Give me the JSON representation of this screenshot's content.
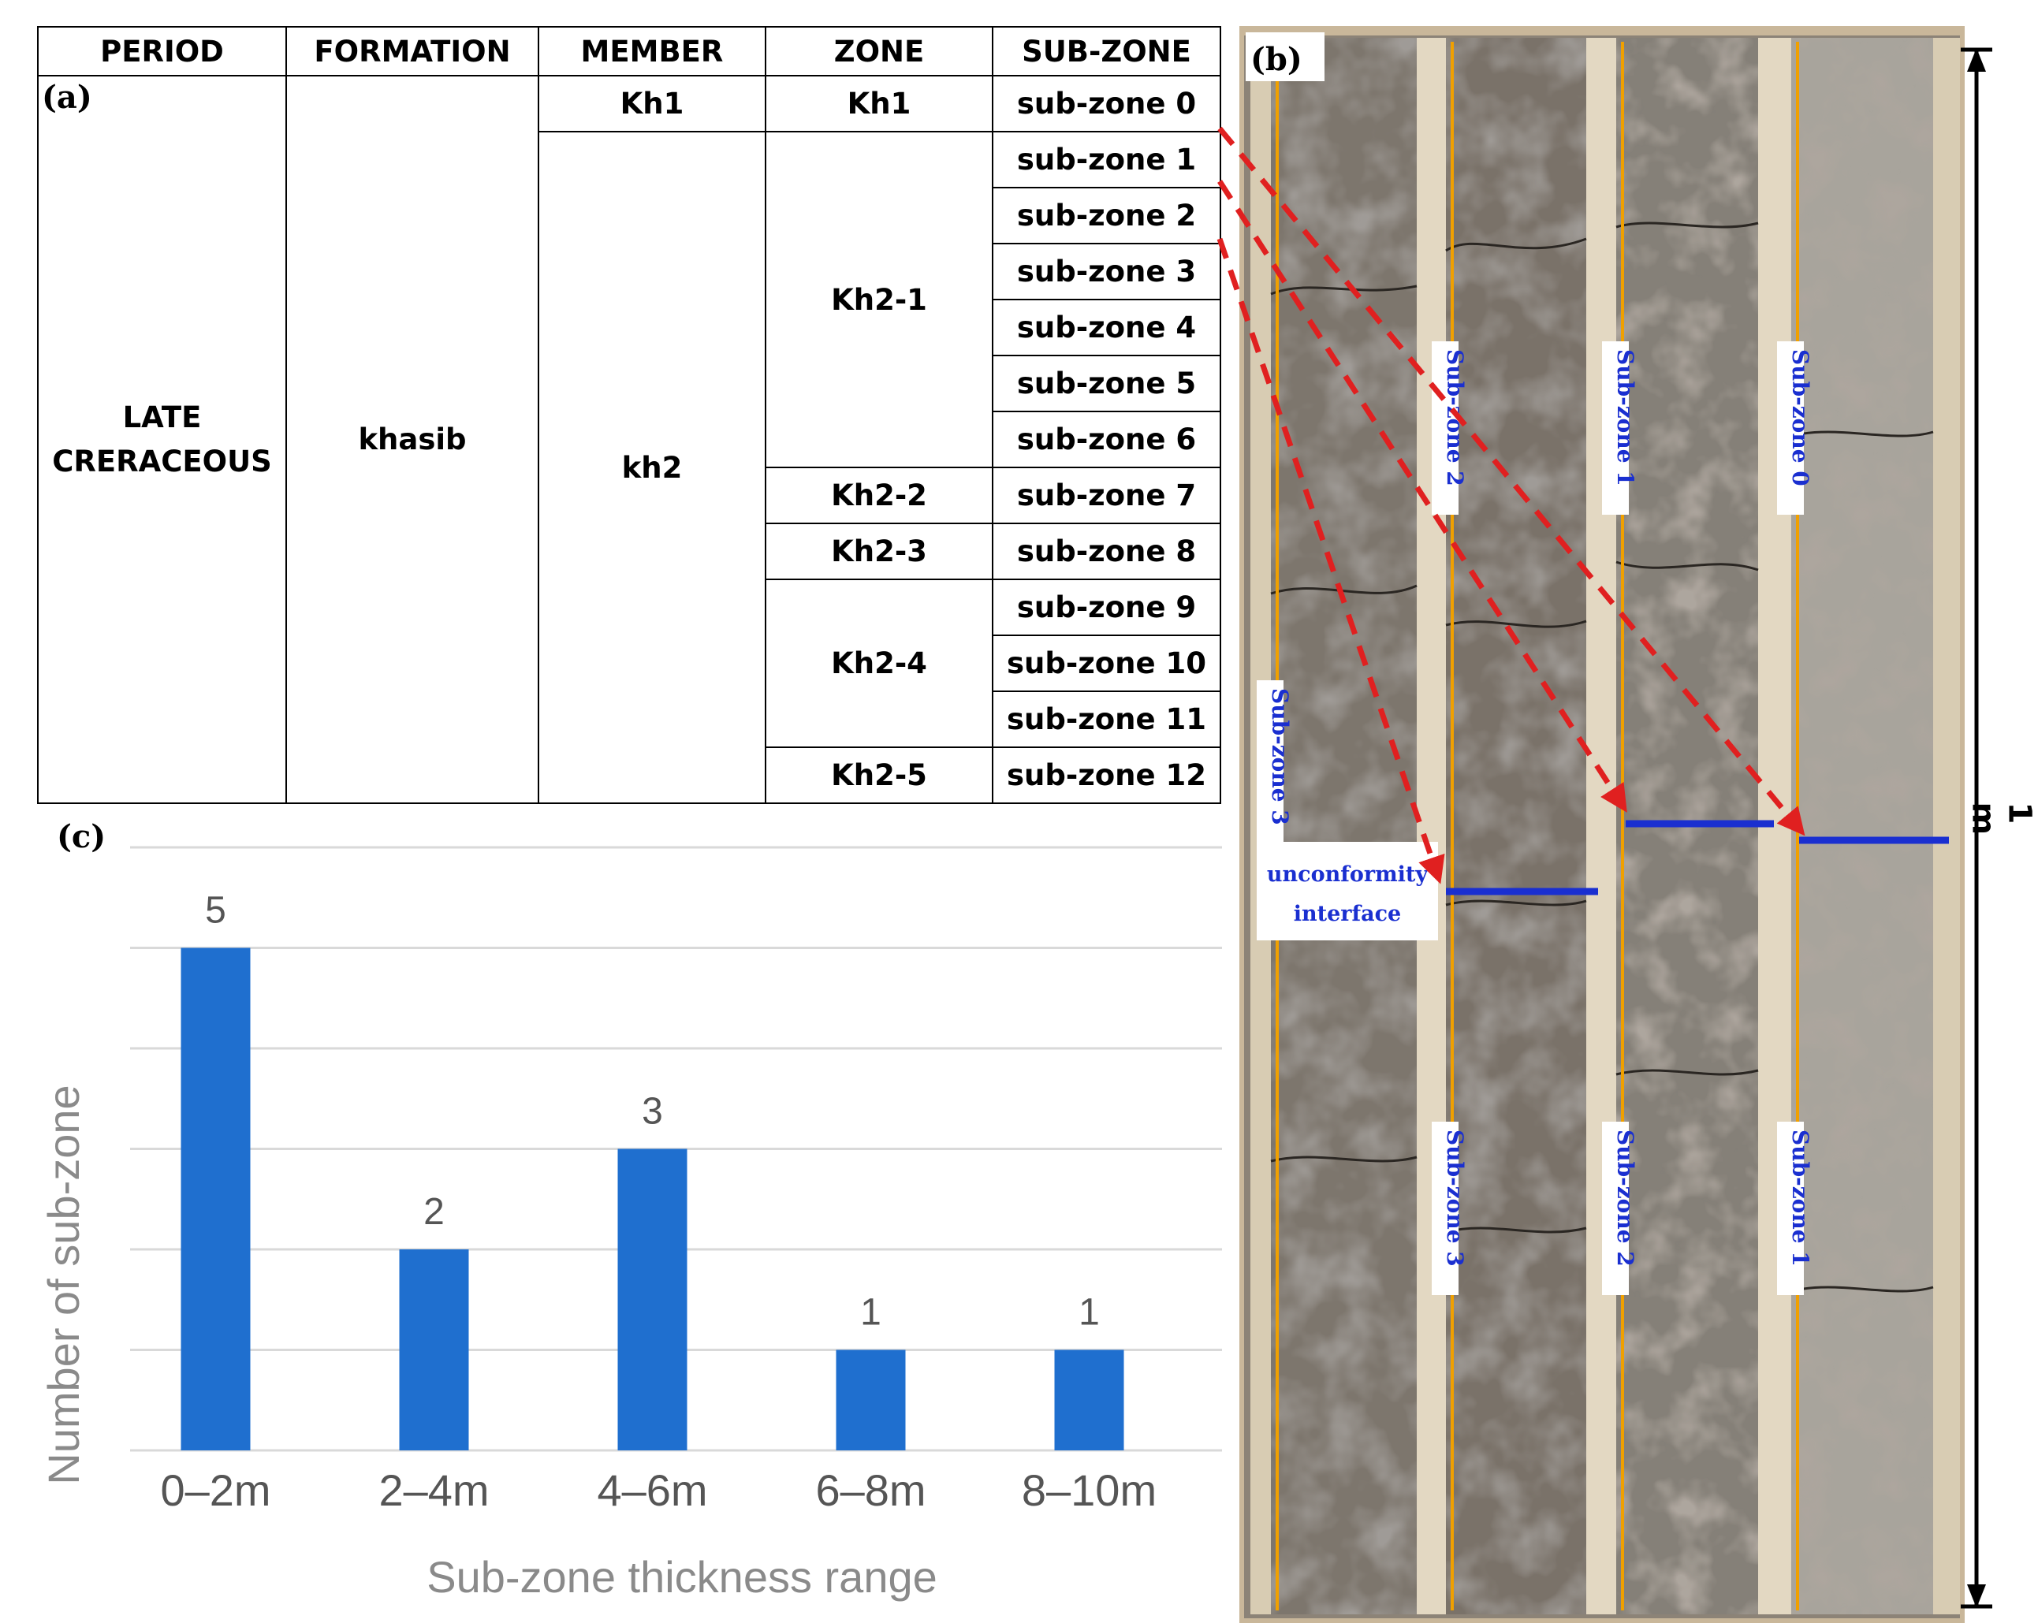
{
  "panel_a": {
    "label": "(a)",
    "headers": {
      "period": "PERIOD",
      "formation": "FORMATION",
      "member": "MEMBER",
      "zone": "ZONE",
      "subzone": "SUB-ZONE"
    },
    "period": {
      "line1": "LATE",
      "line2": "CRERACEOUS"
    },
    "formation": "khasib",
    "members": [
      "Kh1",
      "kh2"
    ],
    "zones": [
      "Kh1",
      "Kh2-1",
      "Kh2-2",
      "Kh2-3",
      "Kh2-4",
      "Kh2-5"
    ],
    "subzones": [
      "sub-zone 0",
      "sub-zone 1",
      "sub-zone 2",
      "sub-zone 3",
      "sub-zone 4",
      "sub-zone 5",
      "sub-zone 6",
      "sub-zone 7",
      "sub-zone 8",
      "sub-zone 9",
      "sub-zone 10",
      "sub-zone 11",
      "sub-zone 12"
    ]
  },
  "panel_b": {
    "label": "(b)",
    "column_labels": [
      "Sub-zone 3",
      "Sub-zone 2",
      "Sub-zone 3",
      "Sub-zone 1",
      "Sub-zone 2",
      "Sub-zone 0",
      "Sub-zone 1"
    ],
    "interface_line1": "unconformity",
    "interface_line2": "interface",
    "scale": "1 m",
    "colors": {
      "dashed_arrow": "#e02020",
      "boundary": "#1a2fd0",
      "column_line": "#f0a000"
    }
  },
  "chart_data": {
    "type": "bar",
    "label": "(c)",
    "categories": [
      "0–2m",
      "2–4m",
      "4–6m",
      "6–8m",
      "8–10m"
    ],
    "values": [
      5,
      2,
      3,
      1,
      1
    ],
    "data_labels": [
      "5",
      "2",
      "3",
      "1",
      "1"
    ],
    "xlabel": "Sub-zone  thickness range",
    "ylabel": "Number  of sub-zone",
    "ylim": [
      0,
      5
    ],
    "grid": true,
    "bar_color": "#1f6fcf"
  }
}
